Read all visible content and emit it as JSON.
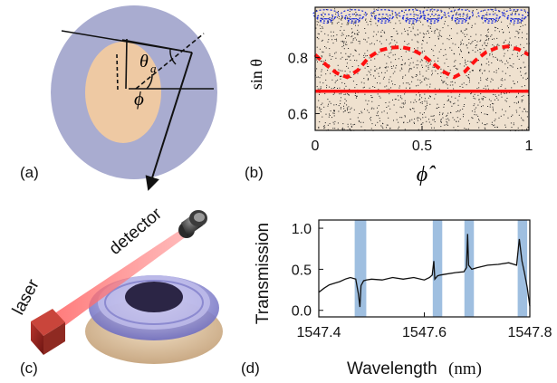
{
  "panels": {
    "a": {
      "label": "(a)",
      "theta": "θ",
      "theta_sub": "a",
      "phi": "ϕ"
    },
    "b": {
      "label": "(b)"
    },
    "c": {
      "label": "(c)",
      "laser": "laser",
      "detector": "detector"
    },
    "d": {
      "label": "(d)"
    }
  },
  "colors": {
    "outer_disk": "#a9acd0",
    "inner_disk": "#eec9a3",
    "chart_bg": "#efe1cf",
    "red": "#ff1010",
    "blue": "#1a2bd8",
    "highlight": "#9fbfe0"
  },
  "chart_data": [
    {
      "type": "scatter",
      "id": "b",
      "xlabel": "ϕ̂",
      "ylabel": "sin θ",
      "xlim": [
        0,
        1
      ],
      "ylim": [
        0.54,
        0.98
      ],
      "x_ticks": [
        "0",
        "0.5",
        "1"
      ],
      "y_ticks": [
        "0.6",
        "0.8"
      ],
      "y_tick_values": [
        0.6,
        0.8
      ],
      "x_tick_values": [
        0,
        0.5,
        1
      ],
      "solid_red_line": 0.68,
      "dashed_red_curve": {
        "x": [
          0,
          0.05,
          0.1,
          0.15,
          0.2,
          0.25,
          0.3,
          0.35,
          0.4,
          0.45,
          0.5,
          0.55,
          0.6,
          0.65,
          0.7,
          0.75,
          0.8,
          0.85,
          0.9,
          0.95,
          1.0
        ],
        "y": [
          0.81,
          0.775,
          0.745,
          0.73,
          0.755,
          0.8,
          0.825,
          0.835,
          0.838,
          0.83,
          0.81,
          0.78,
          0.75,
          0.73,
          0.75,
          0.79,
          0.82,
          0.835,
          0.84,
          0.83,
          0.81
        ]
      }
    },
    {
      "type": "line",
      "id": "d",
      "xlabel": "Wavelength",
      "xlabel_unit": "(nm)",
      "ylabel": "Transmission",
      "xlim": [
        1547.4,
        1547.8
      ],
      "ylim": [
        -0.08,
        1.1
      ],
      "x_ticks": [
        "1547.4",
        "1547.6",
        "1547.8"
      ],
      "x_tick_values": [
        1547.4,
        1547.6,
        1547.8
      ],
      "y_ticks": [
        "0.0",
        "0.5",
        "1.0"
      ],
      "y_tick_values": [
        0.0,
        0.5,
        1.0
      ],
      "highlight_bands": [
        [
          1547.468,
          1547.49
        ],
        [
          1547.616,
          1547.634
        ],
        [
          1547.676,
          1547.694
        ],
        [
          1547.777,
          1547.795
        ]
      ],
      "x": [
        1547.4,
        1547.41,
        1547.42,
        1547.43,
        1547.44,
        1547.45,
        1547.46,
        1547.47,
        1547.475,
        1547.478,
        1547.48,
        1547.485,
        1547.49,
        1547.5,
        1547.52,
        1547.54,
        1547.56,
        1547.58,
        1547.6,
        1547.61,
        1547.615,
        1547.618,
        1547.62,
        1547.625,
        1547.63,
        1547.64,
        1547.66,
        1547.675,
        1547.68,
        1547.682,
        1547.684,
        1547.69,
        1547.7,
        1547.72,
        1547.74,
        1547.76,
        1547.775,
        1547.78,
        1547.785,
        1547.79,
        1547.795,
        1547.8
      ],
      "y": [
        0.22,
        0.27,
        0.31,
        0.33,
        0.35,
        0.38,
        0.4,
        0.38,
        0.2,
        0.04,
        0.3,
        0.36,
        0.37,
        0.38,
        0.37,
        0.4,
        0.38,
        0.4,
        0.37,
        0.4,
        0.43,
        0.6,
        0.38,
        0.42,
        0.43,
        0.44,
        0.46,
        0.47,
        0.52,
        0.93,
        0.55,
        0.5,
        0.52,
        0.55,
        0.56,
        0.58,
        0.55,
        0.87,
        0.6,
        0.45,
        0.28,
        0.05
      ]
    }
  ]
}
